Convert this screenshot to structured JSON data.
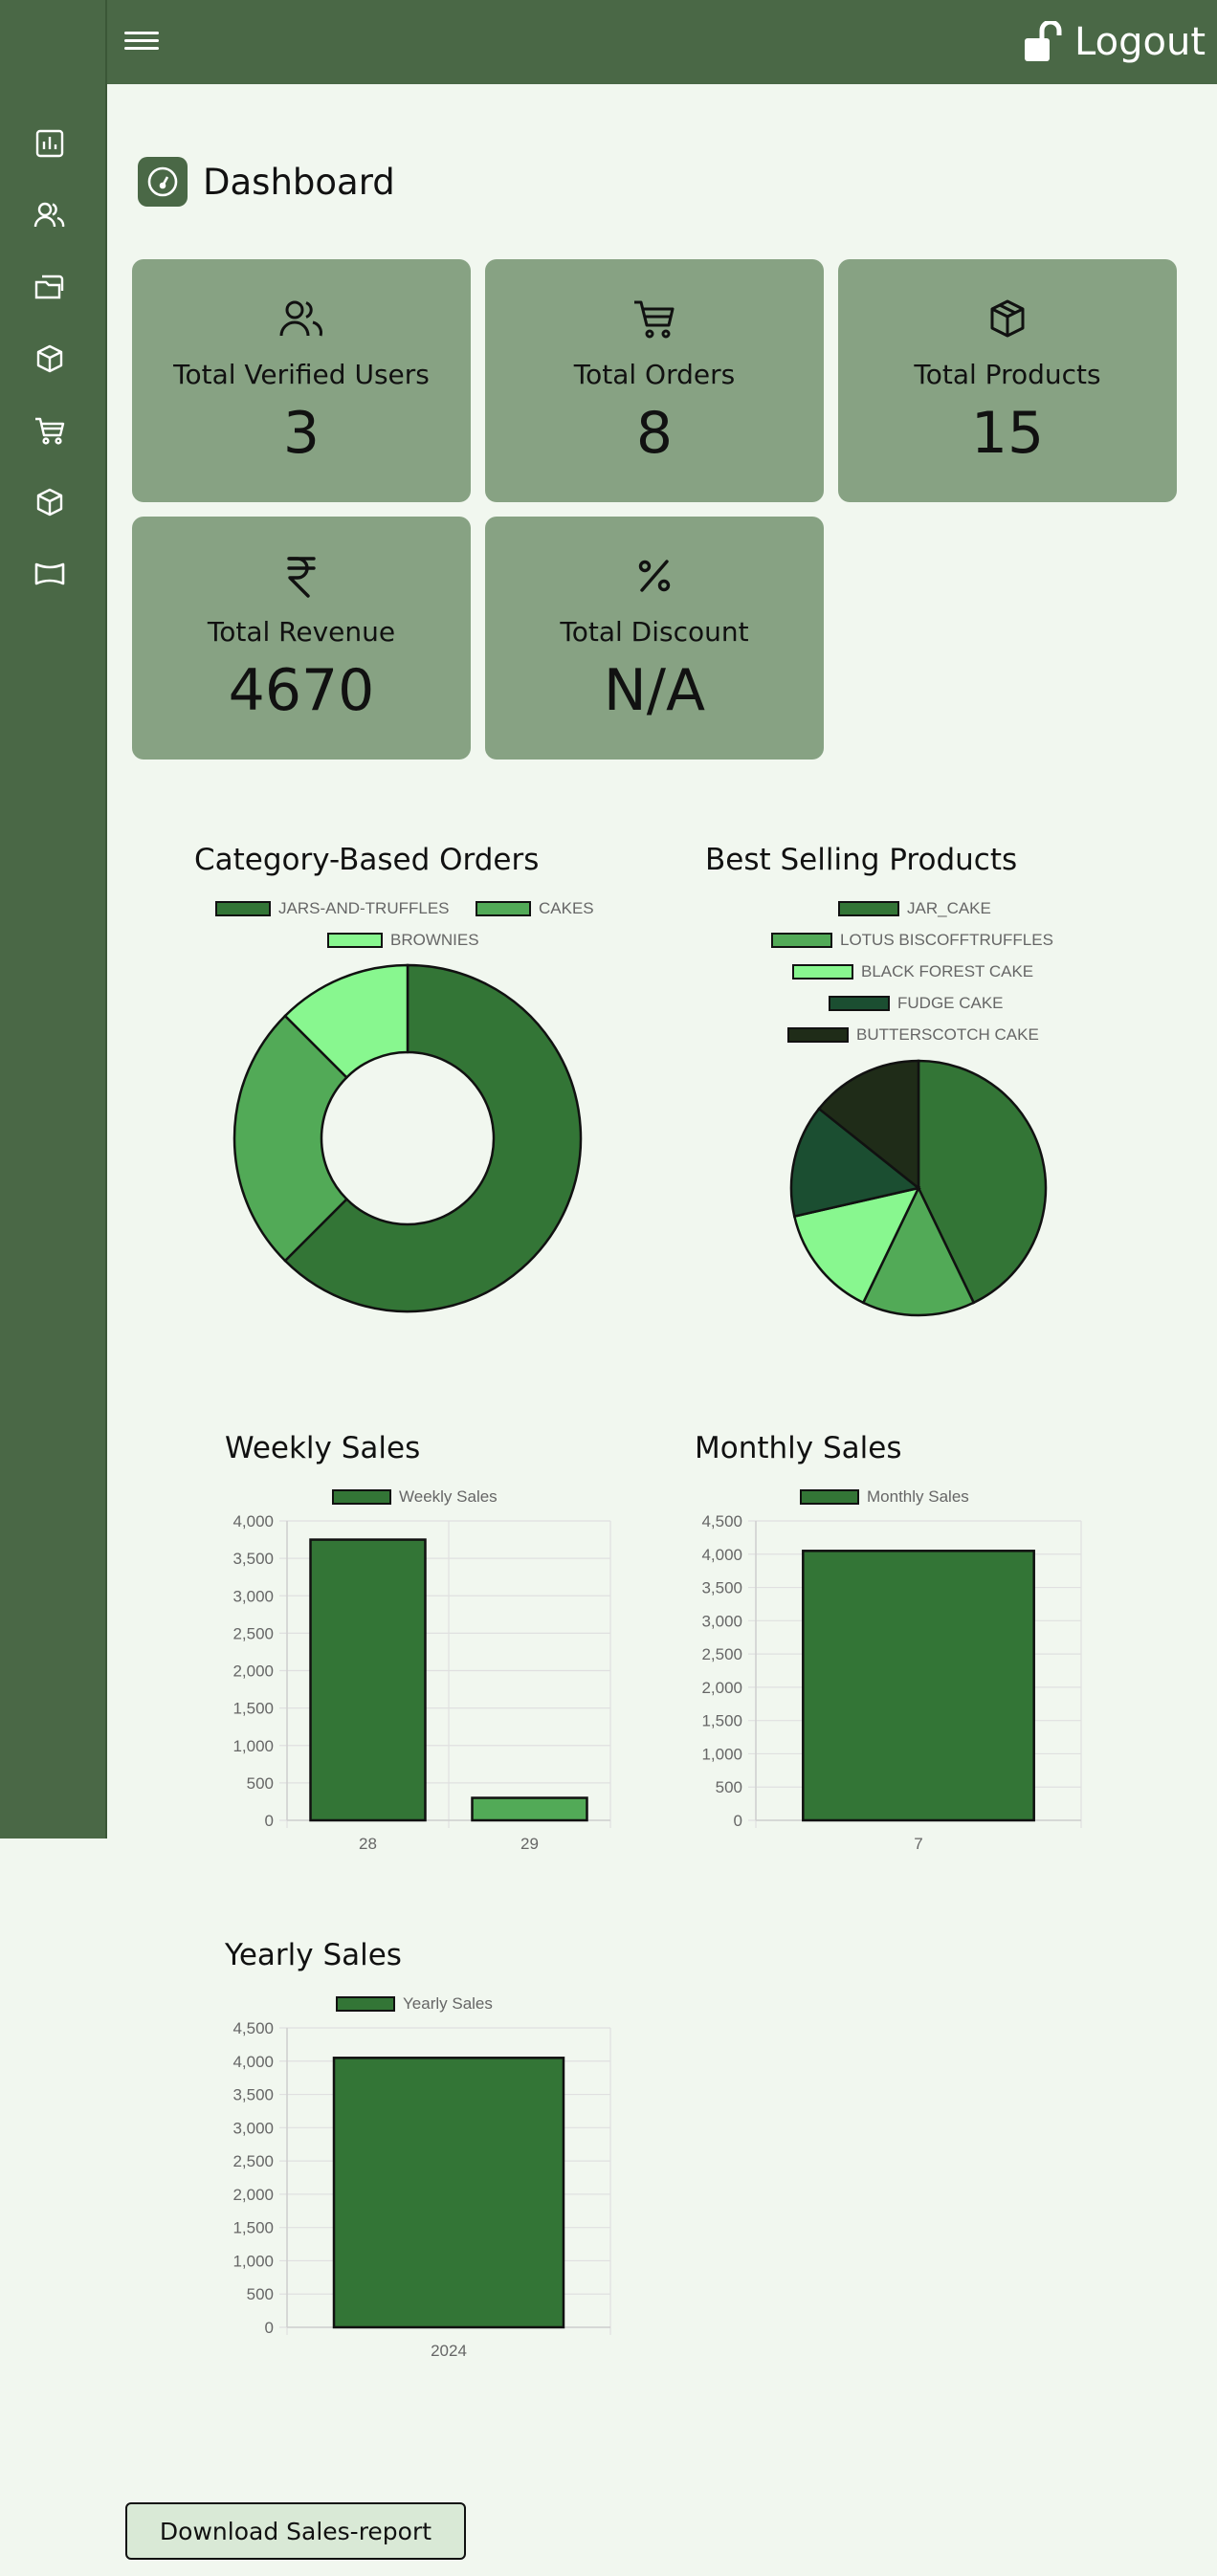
{
  "header": {
    "logout_label": "Logout"
  },
  "sidebar": {
    "items": [
      {
        "icon": "chart-icon"
      },
      {
        "icon": "users-icon"
      },
      {
        "icon": "folders-icon"
      },
      {
        "icon": "box-icon"
      },
      {
        "icon": "cart-icon"
      },
      {
        "icon": "box-icon"
      },
      {
        "icon": "banner-icon"
      }
    ]
  },
  "page": {
    "title": "Dashboard",
    "title_icon": "gauge-icon"
  },
  "stats": [
    {
      "label": "Total Verified Users",
      "value": "3",
      "icon": "users-icon"
    },
    {
      "label": "Total Orders",
      "value": "8",
      "icon": "cart-icon"
    },
    {
      "label": "Total Products",
      "value": "15",
      "icon": "box-icon"
    },
    {
      "label": "Total Revenue",
      "value": "4670",
      "icon": "rupee-icon"
    },
    {
      "label": "Total Discount",
      "value": "N/A",
      "icon": "percent-icon"
    }
  ],
  "colors": {
    "sidebar": "#4a6846",
    "card": "#87a283",
    "background": "#f1f7ef",
    "series_dark": "#337536",
    "series_mid": "#52aa57",
    "series_light": "#88f78f",
    "series_forest": "#1b4e31",
    "series_black": "#1f2c18"
  },
  "chart_data": [
    {
      "type": "doughnut",
      "title": "Category-Based Orders",
      "categories": [
        "JARS-AND-TRUFFLES",
        "CAKES",
        "BROWNIES"
      ],
      "values": [
        5,
        2,
        1
      ],
      "colors": [
        "#337536",
        "#52aa57",
        "#88f78f"
      ],
      "legend": "top"
    },
    {
      "type": "pie",
      "title": "Best Selling Products",
      "categories": [
        "JAR_CAKE",
        "LOTUS BISCOFFTRUFFLES",
        "BLACK FOREST CAKE",
        "FUDGE CAKE",
        "BUTTERSCOTCH CAKE"
      ],
      "values": [
        3,
        1,
        1,
        1,
        1
      ],
      "colors": [
        "#337536",
        "#52aa57",
        "#88f78f",
        "#1b4e31",
        "#1f2c18"
      ],
      "legend": "top"
    },
    {
      "type": "bar",
      "title": "Weekly Sales",
      "categories": [
        "28",
        "29"
      ],
      "series": [
        {
          "name": "Weekly Sales",
          "values": [
            3750,
            300
          ]
        }
      ],
      "colors": [
        "#337536",
        "#52aa57"
      ],
      "ylim": [
        0,
        4000
      ],
      "yticks": [
        "0",
        "500",
        "1,000",
        "1,500",
        "2,000",
        "2,500",
        "3,000",
        "3,500",
        "4,000"
      ],
      "grid": true,
      "legend": "top"
    },
    {
      "type": "bar",
      "title": "Monthly Sales",
      "categories": [
        "7"
      ],
      "series": [
        {
          "name": "Monthly Sales",
          "values": [
            4050
          ]
        }
      ],
      "colors": [
        "#337536"
      ],
      "ylim": [
        0,
        4500
      ],
      "yticks": [
        "0",
        "500",
        "1,000",
        "1,500",
        "2,000",
        "2,500",
        "3,000",
        "3,500",
        "4,000",
        "4,500"
      ],
      "grid": true,
      "legend": "top"
    },
    {
      "type": "bar",
      "title": "Yearly Sales",
      "categories": [
        "2024"
      ],
      "series": [
        {
          "name": "Yearly Sales",
          "values": [
            4050
          ]
        }
      ],
      "colors": [
        "#337536"
      ],
      "ylim": [
        0,
        4500
      ],
      "yticks": [
        "0",
        "500",
        "1,000",
        "1,500",
        "2,000",
        "2,500",
        "3,000",
        "3,500",
        "4,000",
        "4,500"
      ],
      "grid": true,
      "legend": "top"
    }
  ],
  "actions": {
    "download_label": "Download Sales-report"
  }
}
